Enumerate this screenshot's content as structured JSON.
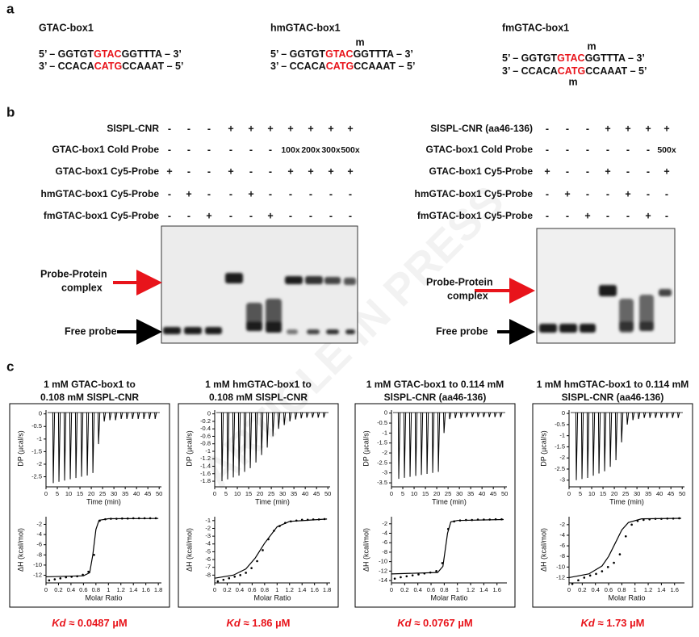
{
  "watermark": "ARTICLE IN PRESS",
  "panel_a": {
    "label": "a",
    "constructs": [
      {
        "name": "GTAC-box1",
        "top": [
          "5’ – GGTGT",
          "GTAC",
          "GGTTTA – 3’"
        ],
        "bottom": [
          "3’ – CCACA",
          "CATG",
          "CCAAAT – 5’"
        ],
        "marks": []
      },
      {
        "name": "hmGTAC-box1",
        "top": [
          "5’ – GGTGT",
          "GTAC",
          "GGTTTA – 3’"
        ],
        "bottom": [
          "3’ – CCACA",
          "CATG",
          "CCAAAT – 5’"
        ],
        "marks": [
          "m"
        ]
      },
      {
        "name": "fmGTAC-box1",
        "top": [
          "5’ – GGTGT",
          "GTAC",
          "GGTTTA – 3’"
        ],
        "bottom": [
          "3’ – CCACA",
          "CATG",
          "CCAAAT – 5’"
        ],
        "marks": [
          "m",
          "m"
        ]
      }
    ]
  },
  "panel_b": {
    "label": "b",
    "assays": [
      {
        "rows": [
          {
            "label": "SlSPL-CNR",
            "cells": [
              "-",
              "-",
              "-",
              "+",
              "+",
              "+",
              "+",
              "+",
              "+",
              "+"
            ]
          },
          {
            "label": "GTAC-box1 Cold Probe",
            "cells": [
              "-",
              "-",
              "-",
              "-",
              "-",
              "-",
              "100x",
              "200x",
              "300x",
              "500x"
            ]
          },
          {
            "label": "GTAC-box1 Cy5-Probe",
            "cells": [
              "+",
              "-",
              "-",
              "+",
              "-",
              "-",
              "+",
              "+",
              "+",
              "+"
            ]
          },
          {
            "label": "hmGTAC-box1 Cy5-Probe",
            "cells": [
              "-",
              "+",
              "-",
              "-",
              "+",
              "-",
              "-",
              "-",
              "-",
              "-"
            ]
          },
          {
            "label": "fmGTAC-box1 Cy5-Probe",
            "cells": [
              "-",
              "-",
              "+",
              "-",
              "-",
              "+",
              "-",
              "-",
              "-",
              "-"
            ]
          }
        ],
        "complex_label": [
          "Probe-Protein",
          "complex"
        ],
        "free_label": "Free probe"
      },
      {
        "rows": [
          {
            "label": "SlSPL-CNR (aa46-136)",
            "cells": [
              "-",
              "-",
              "-",
              "+",
              "+",
              "+",
              "+"
            ]
          },
          {
            "label": "GTAC-box1 Cold Probe",
            "cells": [
              "-",
              "-",
              "-",
              "-",
              "-",
              "-",
              "500x"
            ]
          },
          {
            "label": "GTAC-box1 Cy5-Probe",
            "cells": [
              "+",
              "-",
              "-",
              "+",
              "-",
              "-",
              "+"
            ]
          },
          {
            "label": "hmGTAC-box1 Cy5-Probe",
            "cells": [
              "-",
              "+",
              "-",
              "-",
              "+",
              "-",
              "-"
            ]
          },
          {
            "label": "fmGTAC-box1 Cy5-Probe",
            "cells": [
              "-",
              "-",
              "+",
              "-",
              "-",
              "+",
              "-"
            ]
          }
        ],
        "complex_label": [
          "Probe-Protein",
          "complex"
        ],
        "free_label": "Free probe"
      }
    ]
  },
  "panel_c": {
    "label": "c",
    "itc": [
      {
        "title": [
          "1 mM GTAC-box1 to",
          "0.108 mM SlSPL-CNR"
        ],
        "top": {
          "ylabel": "DP (µcal/s)",
          "xlabel": "Time (min)",
          "xlim": [
            0,
            51
          ],
          "ylim": [
            -2.9,
            0.15
          ],
          "xticks": [
            0,
            5,
            10,
            15,
            20,
            25,
            30,
            35,
            40,
            45,
            50
          ],
          "yticks": [
            0,
            -0.5,
            -1,
            -1.5,
            -2,
            -2.5
          ],
          "times": [
            3,
            5.5,
            8,
            10.5,
            13,
            15.5,
            18,
            20.5,
            23,
            25.5,
            28,
            30.5,
            33,
            35.5,
            38,
            40.5,
            43,
            45.5,
            48
          ],
          "values": [
            -2.75,
            -2.7,
            -2.65,
            -2.6,
            -2.55,
            -2.5,
            -2.45,
            -2.35,
            -1.2,
            -0.3,
            -0.25,
            -0.25,
            -0.2,
            -0.2,
            -0.2,
            -0.2,
            -0.2,
            -0.2,
            -0.2
          ]
        },
        "bottom": {
          "ylabel": "ΔH (kcal/mol)",
          "xlabel": "Molar Ratio",
          "xlim": [
            0,
            1.85
          ],
          "ylim": [
            -13.5,
            -0.5
          ],
          "xticks": [
            0,
            0.2,
            0.4,
            0.6,
            0.8,
            1,
            1.2,
            1.4,
            1.6,
            1.8
          ],
          "yticks": [
            -12,
            -10,
            -8,
            -6,
            -4,
            -2
          ],
          "x": [
            0.05,
            0.14,
            0.23,
            0.32,
            0.41,
            0.5,
            0.59,
            0.68,
            0.77,
            0.86,
            0.95,
            1.04,
            1.13,
            1.22,
            1.31,
            1.4,
            1.49,
            1.58,
            1.67,
            1.76
          ],
          "values": [
            -13,
            -12.8,
            -12.6,
            -12.4,
            -12.3,
            -12.2,
            -11.9,
            -11.3,
            -8,
            -1.3,
            -1,
            -0.9,
            -0.9,
            -0.85,
            -0.85,
            -0.8,
            -0.8,
            -0.8,
            -0.8,
            -0.8
          ],
          "fit_x": [
            0,
            0.6,
            0.7,
            0.75,
            0.8,
            0.85,
            1,
            1.8
          ],
          "fit_values": [
            -12.3,
            -12.1,
            -11.5,
            -8,
            -3,
            -1.2,
            -0.9,
            -0.85
          ]
        },
        "kd_symbol": "Kd",
        "kd_value": " ≈ 0.0487 µM"
      },
      {
        "title": [
          "1 mM hmGTAC-box1 to",
          "0.108 mM SlSPL-CNR"
        ],
        "top": {
          "ylabel": "DP (µcal/s)",
          "xlabel": "Time (min)",
          "xlim": [
            0,
            51
          ],
          "ylim": [
            -1.95,
            0.1
          ],
          "xticks": [
            0,
            5,
            10,
            15,
            20,
            25,
            30,
            35,
            40,
            45,
            50
          ],
          "yticks": [
            0,
            -0.2,
            -0.4,
            -0.6,
            -0.8,
            -1,
            -1.2,
            -1.4,
            -1.6,
            -1.8
          ],
          "times": [
            3,
            5.5,
            8,
            10.5,
            13,
            15.5,
            18,
            20.5,
            23,
            25.5,
            28,
            30.5,
            33,
            35.5,
            38,
            40.5,
            43,
            45.5,
            48
          ],
          "values": [
            -1.8,
            -1.75,
            -1.7,
            -1.65,
            -1.55,
            -1.45,
            -1.3,
            -1.1,
            -0.9,
            -0.6,
            -0.4,
            -0.3,
            -0.2,
            -0.15,
            -0.12,
            -0.1,
            -0.1,
            -0.1,
            -0.1
          ]
        },
        "bottom": {
          "ylabel": "ΔH (kcal/mol)",
          "xlabel": "Molar Ratio",
          "xlim": [
            0,
            1.85
          ],
          "ylim": [
            -9,
            -0.5
          ],
          "xticks": [
            0,
            0.2,
            0.4,
            0.6,
            0.8,
            1,
            1.2,
            1.4,
            1.6,
            1.8
          ],
          "yticks": [
            -8,
            -7,
            -6,
            -5,
            -4,
            -3,
            -2,
            -1
          ],
          "x": [
            0.05,
            0.14,
            0.23,
            0.32,
            0.41,
            0.5,
            0.59,
            0.68,
            0.77,
            0.86,
            0.95,
            1.04,
            1.13,
            1.22,
            1.31,
            1.4,
            1.49,
            1.58,
            1.67,
            1.76
          ],
          "values": [
            -8.8,
            -8.6,
            -8.4,
            -8.2,
            -8,
            -7.7,
            -7.1,
            -6.2,
            -4.8,
            -3.4,
            -2.3,
            -1.7,
            -1.3,
            -1.1,
            -1,
            -0.9,
            -0.9,
            -0.85,
            -0.85,
            -0.8
          ],
          "fit_x": [
            0,
            0.3,
            0.5,
            0.65,
            0.8,
            1,
            1.2,
            1.8
          ],
          "fit_values": [
            -8.4,
            -8,
            -7.2,
            -5.8,
            -3.9,
            -1.8,
            -1.1,
            -0.8
          ]
        },
        "kd_symbol": "Kd",
        "kd_value": " ≈ 1.86 µM"
      },
      {
        "title": [
          "1 mM GTAC-box1 to 0.114 mM",
          "SlSPL-CNR (aa46-136)"
        ],
        "top": {
          "ylabel": "DP (µcal/s)",
          "xlabel": "Time (min)",
          "xlim": [
            0,
            51
          ],
          "ylim": [
            -3.7,
            0.15
          ],
          "xticks": [
            0,
            5,
            10,
            15,
            20,
            25,
            30,
            35,
            40,
            45,
            50
          ],
          "yticks": [
            0,
            -0.5,
            -1,
            -1.5,
            -2,
            -2.5,
            -3,
            -3.5
          ],
          "times": [
            3,
            5.5,
            8,
            10.5,
            13,
            15.5,
            18,
            20.5,
            23,
            25.5,
            28,
            30.5,
            33,
            35.5,
            38,
            40.5,
            43,
            45.5,
            48
          ],
          "values": [
            -3.3,
            -3.25,
            -3.2,
            -3.15,
            -3.1,
            -3.05,
            -3,
            -2.95,
            -1,
            -0.3,
            -0.25,
            -0.25,
            -0.2,
            -0.2,
            -0.2,
            -0.2,
            -0.2,
            -0.2,
            -0.2
          ]
        },
        "bottom": {
          "ylabel": "ΔH (kcal/mol)",
          "xlabel": "Molar Ratio",
          "xlim": [
            0,
            1.75
          ],
          "ylim": [
            -14.5,
            -0.5
          ],
          "xticks": [
            0,
            0.2,
            0.4,
            0.6,
            0.8,
            1,
            1.2,
            1.4,
            1.6
          ],
          "yticks": [
            -14,
            -12,
            -10,
            -8,
            -6,
            -4,
            -2
          ],
          "x": [
            0.05,
            0.14,
            0.23,
            0.32,
            0.41,
            0.5,
            0.59,
            0.68,
            0.77,
            0.86,
            0.95,
            1.04,
            1.13,
            1.22,
            1.31,
            1.4,
            1.49,
            1.58,
            1.67
          ],
          "values": [
            -13.6,
            -13.3,
            -13.1,
            -12.9,
            -12.7,
            -12.5,
            -12.3,
            -12,
            -10.3,
            -3.1,
            -1.5,
            -1.3,
            -1.2,
            -1.2,
            -1.1,
            -1.1,
            -1.1,
            -1.05,
            -1.05
          ],
          "fit_x": [
            0,
            0.7,
            0.78,
            0.85,
            0.9,
            1,
            1.7
          ],
          "fit_values": [
            -12.6,
            -12.3,
            -11,
            -4,
            -1.6,
            -1.3,
            -1.1
          ]
        },
        "kd_symbol": "Kd",
        "kd_value": " ≈ 0.0767 µM"
      },
      {
        "title": [
          "1 mM hmGTAC-box1 to  0.114 mM",
          "SlSPL-CNR (aa46-136)"
        ],
        "top": {
          "ylabel": "DP (µcal/s)",
          "xlabel": "Time (min)",
          "xlim": [
            0,
            51
          ],
          "ylim": [
            -3.3,
            0.15
          ],
          "xticks": [
            0,
            5,
            10,
            15,
            20,
            25,
            30,
            35,
            40,
            45,
            50
          ],
          "yticks": [
            0,
            -0.5,
            -1,
            -1.5,
            -2,
            -2.5,
            -3
          ],
          "times": [
            3,
            5.5,
            8,
            10.5,
            13,
            15.5,
            18,
            20.5,
            23,
            25.5,
            28,
            30.5,
            33,
            35.5,
            38,
            40.5,
            43,
            45.5,
            48
          ],
          "values": [
            -3,
            -2.95,
            -2.9,
            -2.8,
            -2.7,
            -2.6,
            -2.4,
            -2.1,
            -1.3,
            -0.5,
            -0.3,
            -0.25,
            -0.2,
            -0.2,
            -0.2,
            -0.2,
            -0.2,
            -0.2,
            -0.2
          ]
        },
        "bottom": {
          "ylabel": "ΔH (kcal/mol)",
          "xlabel": "Molar Ratio",
          "xlim": [
            0,
            1.75
          ],
          "ylim": [
            -13,
            -0.5
          ],
          "xticks": [
            0,
            0.2,
            0.4,
            0.6,
            0.8,
            1,
            1.2,
            1.4,
            1.6
          ],
          "yticks": [
            -12,
            -10,
            -8,
            -6,
            -4,
            -2
          ],
          "x": [
            0.05,
            0.14,
            0.23,
            0.32,
            0.41,
            0.5,
            0.59,
            0.68,
            0.77,
            0.86,
            0.95,
            1.04,
            1.13,
            1.22,
            1.31,
            1.4,
            1.49,
            1.58,
            1.67
          ],
          "values": [
            -13.2,
            -12.5,
            -12,
            -11.6,
            -11.3,
            -10.8,
            -10,
            -9.2,
            -7.6,
            -4.2,
            -2,
            -1.3,
            -1.1,
            -1,
            -0.9,
            -0.9,
            -0.85,
            -0.85,
            -0.8
          ],
          "fit_x": [
            0,
            0.3,
            0.5,
            0.6,
            0.7,
            0.8,
            0.9,
            1.1,
            1.7
          ],
          "fit_values": [
            -12,
            -11.3,
            -9.8,
            -8,
            -5.5,
            -3,
            -1.6,
            -0.9,
            -0.8
          ]
        },
        "kd_symbol": "Kd",
        "kd_value": " ≈ 1.73 µM"
      }
    ]
  }
}
